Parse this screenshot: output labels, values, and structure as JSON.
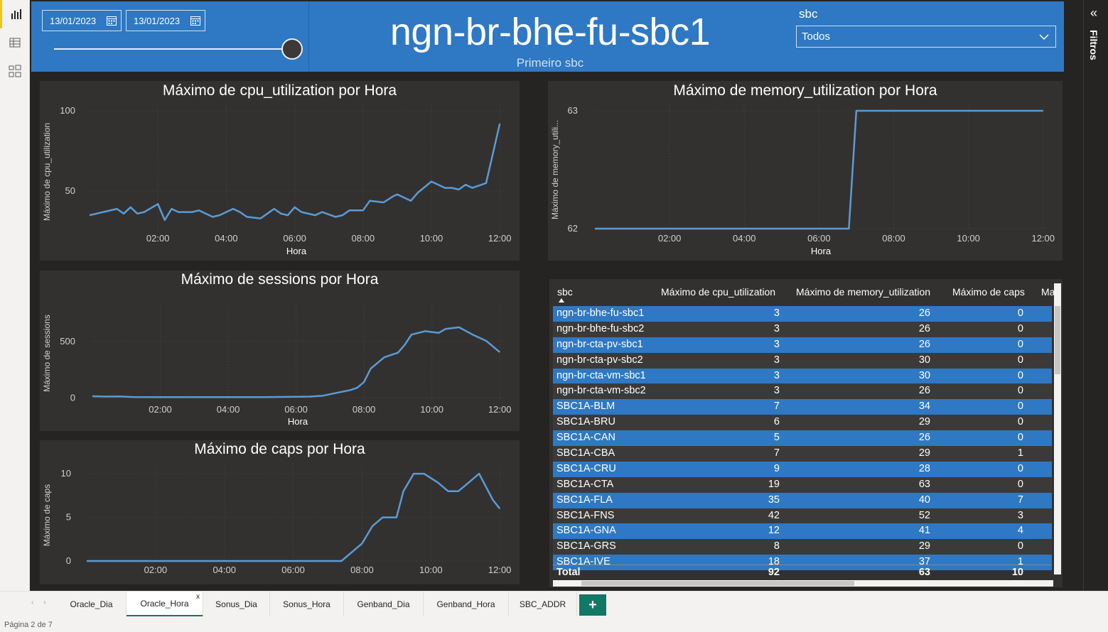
{
  "header": {
    "date_start": "13/01/2023",
    "date_end": "13/01/2023",
    "title": "ngn-br-bhe-fu-sbc1",
    "subtitle": "Primeiro sbc",
    "filter_label": "sbc",
    "filter_value": "Todos"
  },
  "filters_pane": {
    "label": "Filtros"
  },
  "colors": {
    "accent": "#2f78c3",
    "line": "#5b9bd5",
    "panel": "#323130",
    "canvas": "#252423",
    "tab_active": "#117865"
  },
  "chart_data": [
    {
      "type": "line",
      "title": "Máximo de cpu_utilization por Hora",
      "xlabel": "Hora",
      "ylabel": "Máximo de cpu_utilization",
      "x_ticks": [
        "02:00",
        "04:00",
        "06:00",
        "08:00",
        "10:00",
        "12:00"
      ],
      "y_ticks": [
        "50",
        "100"
      ],
      "xlim": [
        0,
        12.1
      ],
      "ylim": [
        24,
        100
      ],
      "x": [
        0,
        0.4,
        0.8,
        1.0,
        1.2,
        1.4,
        1.6,
        2.0,
        2.2,
        2.4,
        2.6,
        3.0,
        3.2,
        3.6,
        3.8,
        4.2,
        4.4,
        4.6,
        5.0,
        5.4,
        5.6,
        5.8,
        6.0,
        6.2,
        6.6,
        6.8,
        7.2,
        7.4,
        7.6,
        8.0,
        8.2,
        8.6,
        8.9,
        9.0,
        9.4,
        9.6,
        10.0,
        10.2,
        10.4,
        10.6,
        10.8,
        11.0,
        11.2,
        11.6,
        12.0
      ],
      "y": [
        35,
        37,
        39,
        36,
        40,
        36,
        37,
        42,
        32,
        39,
        37,
        37,
        38,
        34,
        35,
        39,
        37,
        34,
        33,
        39,
        36,
        35,
        40,
        37,
        35,
        37,
        34,
        35,
        38,
        38,
        44,
        43,
        47,
        48,
        44,
        49,
        56,
        54,
        52,
        52,
        51,
        54,
        52,
        55,
        92
      ]
    },
    {
      "type": "line",
      "title": "Máximo de memory_utilization por Hora",
      "xlabel": "Hora",
      "ylabel": "Máximo de memory_utili...",
      "x_ticks": [
        "02:00",
        "04:00",
        "06:00",
        "08:00",
        "10:00",
        "12:00"
      ],
      "y_ticks": [
        "62",
        "63"
      ],
      "xlim": [
        0,
        12.1
      ],
      "ylim": [
        62,
        63
      ],
      "x": [
        0,
        6.8,
        7.0,
        12.0
      ],
      "y": [
        62,
        62,
        63,
        63
      ]
    },
    {
      "type": "line",
      "title": "Máximo de sessions por Hora",
      "xlabel": "Hora",
      "ylabel": "Máximo de sessions",
      "x_ticks": [
        "02:00",
        "04:00",
        "06:00",
        "08:00",
        "10:00",
        "12:00"
      ],
      "y_ticks": [
        "0",
        "500"
      ],
      "xlim": [
        0,
        12.1
      ],
      "ylim": [
        -10,
        800
      ],
      "x": [
        0,
        0.4,
        0.8,
        1.2,
        2.0,
        3.0,
        4.0,
        5.0,
        6.0,
        6.4,
        6.8,
        7.2,
        7.6,
        7.8,
        8.0,
        8.2,
        8.6,
        9.0,
        9.2,
        9.4,
        9.8,
        10.2,
        10.4,
        10.8,
        11.2,
        11.6,
        12.0
      ],
      "y": [
        15,
        12,
        14,
        8,
        7,
        7,
        7,
        7,
        10,
        12,
        20,
        45,
        70,
        90,
        140,
        260,
        360,
        400,
        470,
        560,
        590,
        575,
        610,
        625,
        560,
        505,
        405
      ]
    },
    {
      "type": "line",
      "title": "Máximo de caps por Hora",
      "xlabel": "",
      "ylabel": "Máximo de caps",
      "x_ticks": [
        "02:00",
        "04:00",
        "06:00",
        "08:00",
        "10:00",
        "12:00"
      ],
      "y_ticks": [
        "0",
        "5",
        "10"
      ],
      "xlim": [
        0,
        12.1
      ],
      "ylim": [
        0,
        10.5
      ],
      "x": [
        0,
        7.4,
        8.0,
        8.3,
        8.6,
        9.0,
        9.2,
        9.5,
        9.8,
        10.2,
        10.5,
        10.8,
        11.1,
        11.4,
        11.8,
        12.0
      ],
      "y": [
        0,
        0,
        2,
        4,
        5,
        5,
        8,
        10,
        10,
        9,
        8,
        8,
        9,
        10,
        7,
        6
      ]
    }
  ],
  "table": {
    "columns": [
      "sbc",
      "Máximo de cpu_utilization",
      "Máximo de memory_utilization",
      "Máximo de caps",
      "Ma"
    ],
    "rows": [
      [
        "ngn-br-bhe-fu-sbc1",
        "3",
        "26",
        "0"
      ],
      [
        "ngn-br-bhe-fu-sbc2",
        "3",
        "26",
        "0"
      ],
      [
        "ngn-br-cta-pv-sbc1",
        "3",
        "26",
        "0"
      ],
      [
        "ngn-br-cta-pv-sbc2",
        "3",
        "30",
        "0"
      ],
      [
        "ngn-br-cta-vm-sbc1",
        "3",
        "30",
        "0"
      ],
      [
        "ngn-br-cta-vm-sbc2",
        "3",
        "26",
        "0"
      ],
      [
        "SBC1A-BLM",
        "7",
        "34",
        "0"
      ],
      [
        "SBC1A-BRU",
        "6",
        "29",
        "0"
      ],
      [
        "SBC1A-CAN",
        "5",
        "26",
        "0"
      ],
      [
        "SBC1A-CBA",
        "7",
        "29",
        "1"
      ],
      [
        "SBC1A-CRU",
        "9",
        "28",
        "0"
      ],
      [
        "SBC1A-CTA",
        "19",
        "63",
        "0"
      ],
      [
        "SBC1A-FLA",
        "35",
        "40",
        "7"
      ],
      [
        "SBC1A-FNS",
        "42",
        "52",
        "3"
      ],
      [
        "SBC1A-GNA",
        "12",
        "41",
        "4"
      ],
      [
        "SBC1A-GRS",
        "8",
        "29",
        "0"
      ],
      [
        "SBC1A-IVE",
        "18",
        "37",
        "1"
      ]
    ],
    "total": [
      "Total",
      "92",
      "63",
      "10"
    ]
  },
  "tabs": [
    "Oracle_Dia",
    "Oracle_Hora",
    "Sonus_Dia",
    "Sonus_Hora",
    "Genband_Dia",
    "Genband_Hora",
    "SBC_ADDR"
  ],
  "active_tab": "Oracle_Hora",
  "add_tab": "+",
  "tab_close": "x",
  "nav": {
    "prev": "‹",
    "next": "›"
  },
  "status": "Página 2 de 7"
}
